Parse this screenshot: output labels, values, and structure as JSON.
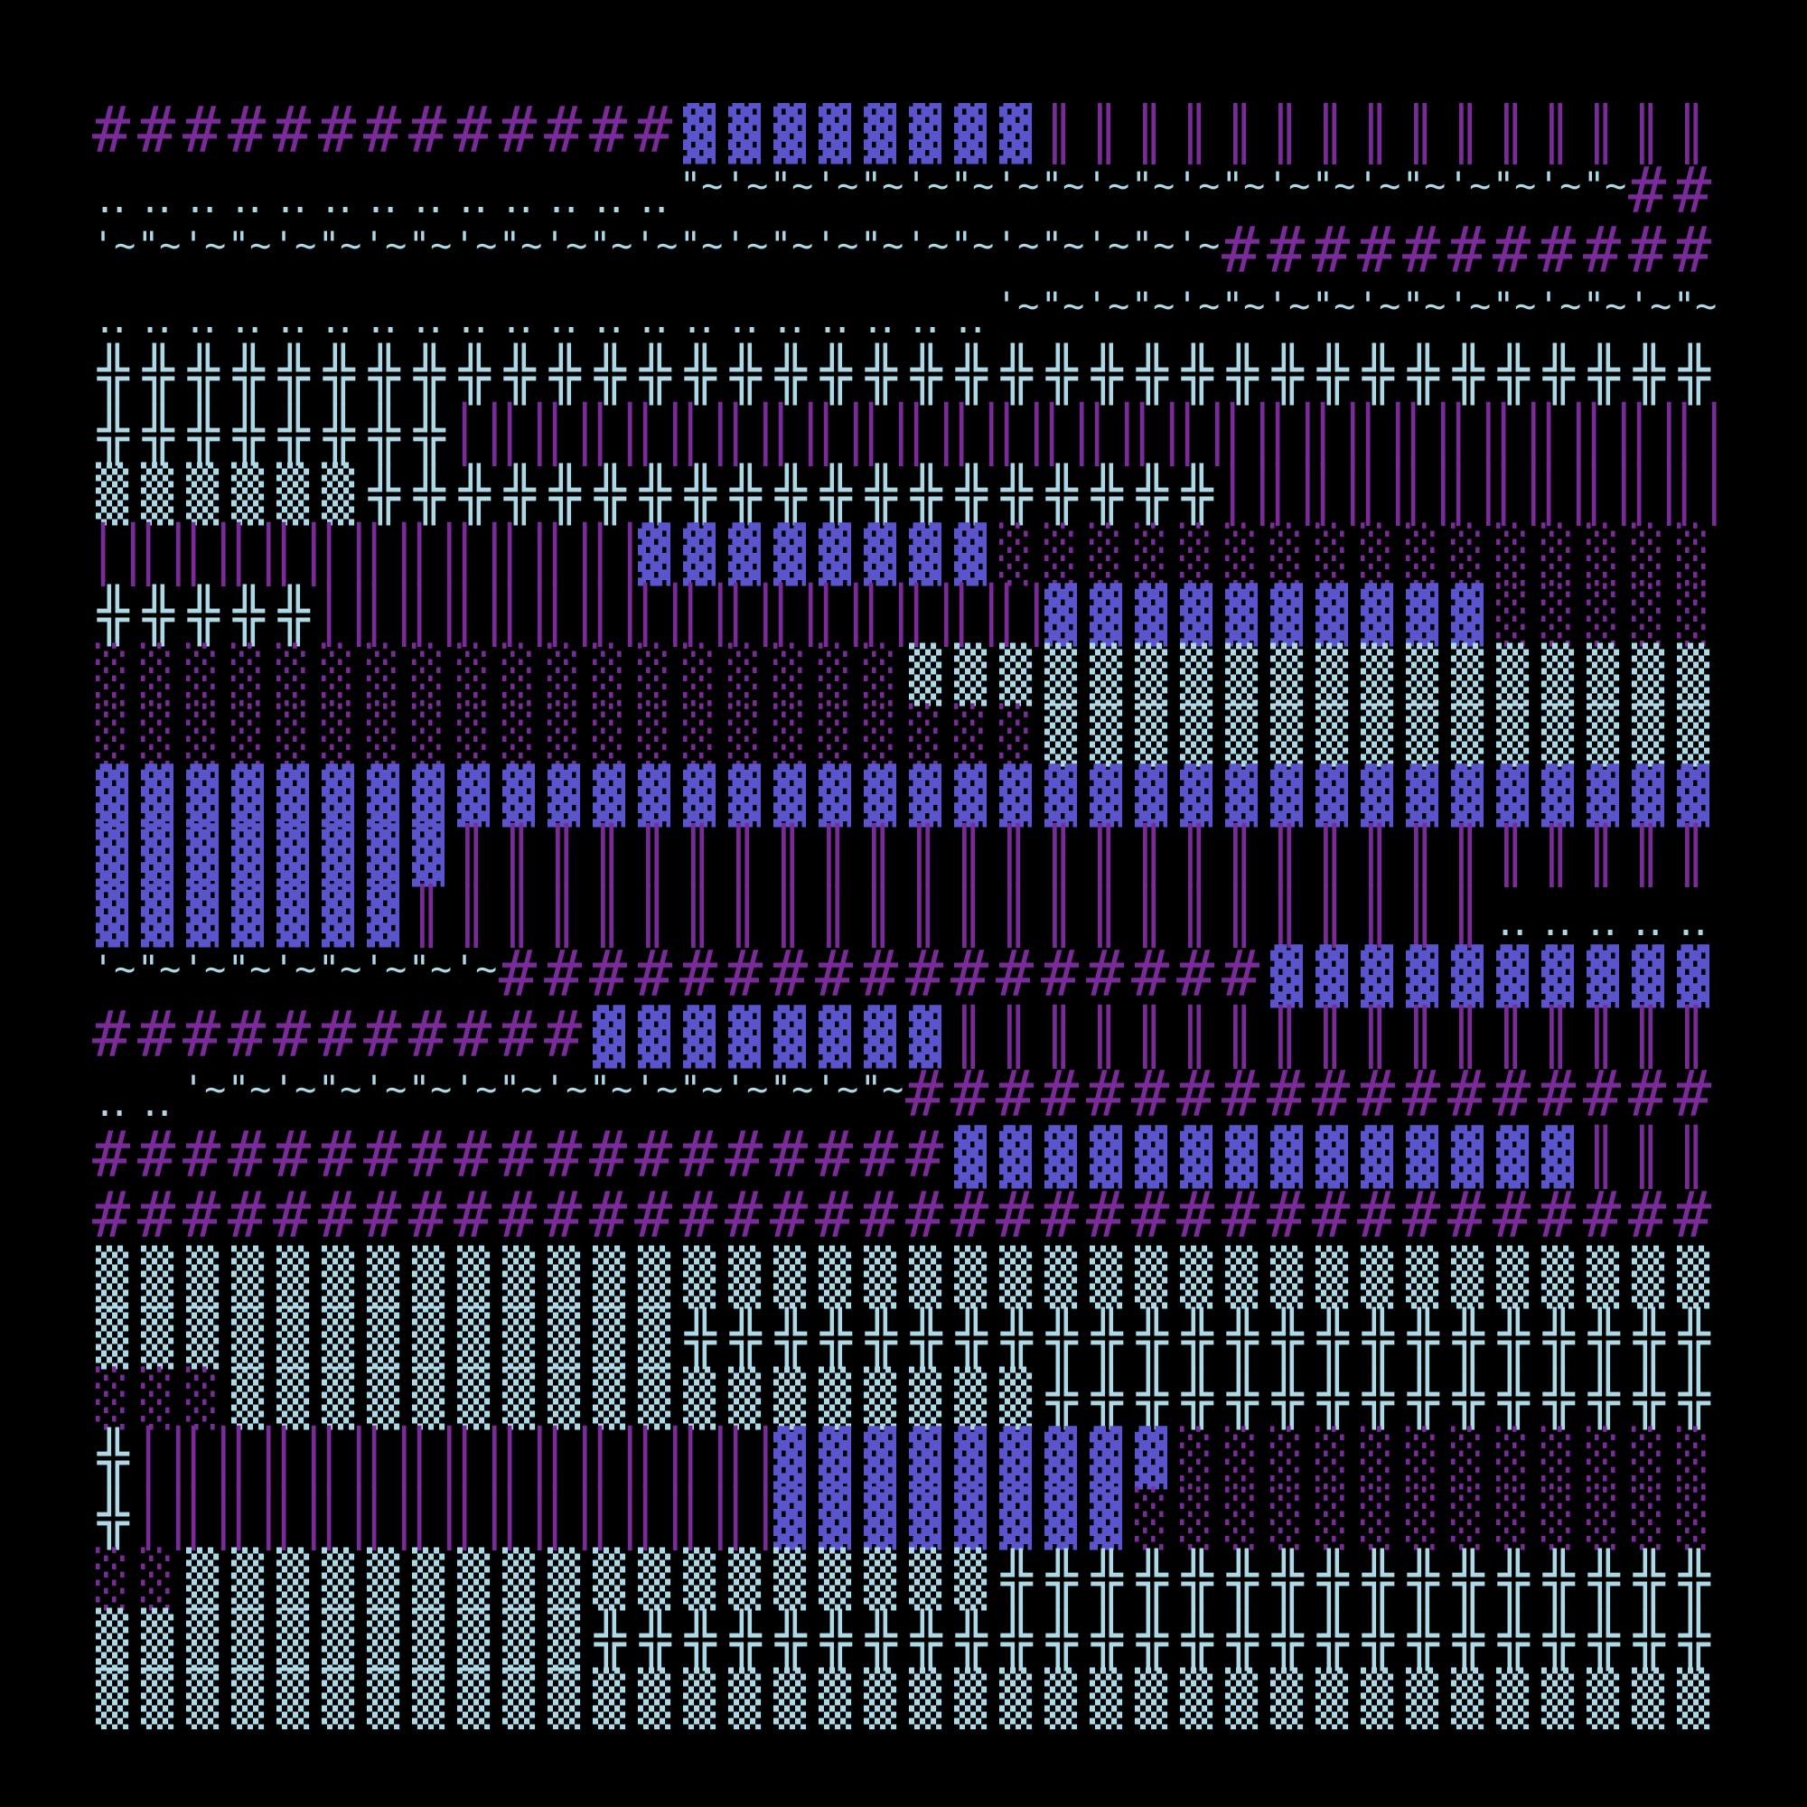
{
  "background": "#000000",
  "glyphs": {
    "H": {
      "name": "hash",
      "chars": [
        "#"
      ],
      "color": "#7b2a9a"
    },
    "D": {
      "name": "dark-shade",
      "chars": [
        "▓"
      ],
      "color": "#5a55cc"
    },
    "M": {
      "name": "medium-shade",
      "chars": [
        "▒"
      ],
      "color": "#add8e6"
    },
    "L": {
      "name": "light-shade",
      "chars": [
        "░"
      ],
      "color": "#7b2a9a"
    },
    "X": {
      "name": "double-cross",
      "chars": [
        "╬"
      ],
      "color": "#add8e6"
    },
    "N": {
      "name": "double-vertical",
      "chars": [
        "║"
      ],
      "color": "#7b2a9a"
    },
    "W": {
      "name": "wide-double-vertical",
      "chars": [
        "││"
      ],
      "color": "#7b2a9a"
    },
    "P": {
      "name": "dots",
      "chars": [
        ".."
      ],
      "color": "#add8e6"
    },
    "V": {
      "name": "wave",
      "chars": [
        "'~",
        "\"~"
      ],
      "color": "#add8e6"
    }
  },
  "rows": [
    [
      [
        "H",
        13
      ],
      [
        "D",
        8
      ],
      [
        "N",
        15
      ]
    ],
    [
      [
        "P",
        13
      ],
      [
        "V",
        21
      ],
      [
        "H",
        2
      ]
    ],
    [
      [
        "V",
        25
      ],
      [
        "H",
        11
      ]
    ],
    [
      [
        "P",
        20
      ],
      [
        "V",
        16
      ]
    ],
    [
      [
        "X",
        36
      ]
    ],
    [
      [
        "X",
        8
      ],
      [
        "W",
        28
      ]
    ],
    [
      [
        "M",
        6
      ],
      [
        "X",
        19
      ],
      [
        "W",
        11
      ]
    ],
    [
      [
        "W",
        12
      ],
      [
        "D",
        8
      ],
      [
        "L",
        16
      ]
    ],
    [
      [
        "X",
        5
      ],
      [
        "W",
        16
      ],
      [
        "D",
        10
      ],
      [
        "L",
        5
      ]
    ],
    [
      [
        "L",
        18
      ],
      [
        "M",
        18
      ]
    ],
    [
      [
        "L",
        21
      ],
      [
        "M",
        15
      ]
    ],
    [
      [
        "D",
        36
      ]
    ],
    [
      [
        "D",
        8
      ],
      [
        "N",
        28
      ]
    ],
    [
      [
        "D",
        7
      ],
      [
        "N",
        24
      ],
      [
        "P",
        5
      ]
    ],
    [
      [
        "V",
        9
      ],
      [
        "H",
        17
      ],
      [
        "D",
        10
      ]
    ],
    [
      [
        "H",
        11
      ],
      [
        "D",
        8
      ],
      [
        "N",
        17
      ]
    ],
    [
      [
        "P",
        2
      ],
      [
        "V",
        16
      ],
      [
        "H",
        18
      ]
    ],
    [
      [
        "H",
        19
      ],
      [
        "D",
        14
      ],
      [
        "N",
        3
      ]
    ],
    [
      [
        "H",
        36
      ]
    ],
    [
      [
        "M",
        36
      ]
    ],
    [
      [
        "M",
        13
      ],
      [
        "X",
        23
      ]
    ],
    [
      [
        "L",
        3
      ],
      [
        "M",
        18
      ],
      [
        "X",
        15
      ]
    ],
    [
      [
        "X",
        1
      ],
      [
        "W",
        14
      ],
      [
        "D",
        9
      ],
      [
        "L",
        12
      ]
    ],
    [
      [
        "X",
        1
      ],
      [
        "W",
        14
      ],
      [
        "D",
        8
      ],
      [
        "L",
        13
      ]
    ],
    [
      [
        "L",
        2
      ],
      [
        "M",
        18
      ],
      [
        "X",
        16
      ]
    ],
    [
      [
        "M",
        11
      ],
      [
        "X",
        25
      ]
    ],
    [
      [
        "M",
        36
      ]
    ]
  ]
}
